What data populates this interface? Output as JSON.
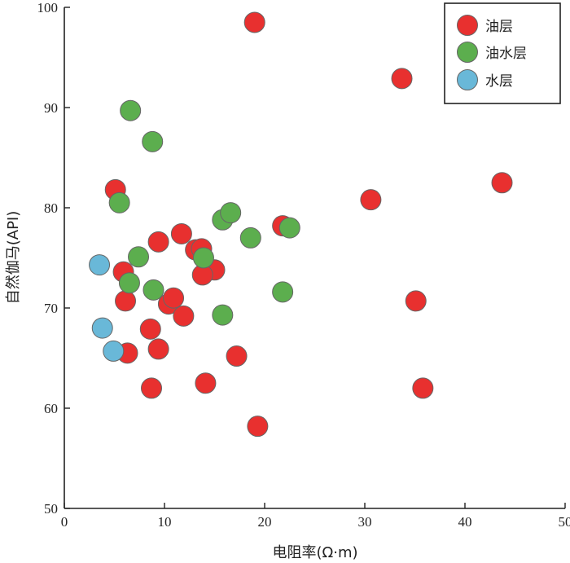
{
  "chart_data": {
    "type": "scatter",
    "xlabel": "电阻率(Ω·m)",
    "ylabel": "自然伽马(API)",
    "xlim": [
      0,
      50
    ],
    "ylim": [
      50,
      100
    ],
    "xticks": [
      "0",
      "10",
      "20",
      "30",
      "40",
      "50"
    ],
    "yticks": [
      "50",
      "60",
      "70",
      "80",
      "90",
      "100"
    ],
    "legend_position": "top-right",
    "series": [
      {
        "name": "油层",
        "color": "#e8302f",
        "points": [
          [
            19.0,
            98.5
          ],
          [
            33.7,
            92.9
          ],
          [
            43.7,
            82.5
          ],
          [
            30.6,
            80.8
          ],
          [
            21.8,
            78.2
          ],
          [
            5.1,
            81.8
          ],
          [
            11.7,
            77.4
          ],
          [
            9.4,
            76.6
          ],
          [
            13.1,
            75.8
          ],
          [
            13.7,
            75.9
          ],
          [
            15.0,
            73.8
          ],
          [
            13.8,
            73.3
          ],
          [
            5.9,
            73.6
          ],
          [
            6.1,
            70.7
          ],
          [
            10.4,
            70.4
          ],
          [
            10.9,
            71.0
          ],
          [
            11.9,
            69.2
          ],
          [
            35.1,
            70.7
          ],
          [
            8.6,
            67.9
          ],
          [
            9.4,
            65.9
          ],
          [
            6.3,
            65.5
          ],
          [
            17.2,
            65.2
          ],
          [
            14.1,
            62.5
          ],
          [
            8.7,
            62.0
          ],
          [
            35.8,
            62.0
          ],
          [
            19.3,
            58.2
          ]
        ]
      },
      {
        "name": "油水层",
        "color": "#5cae4e",
        "points": [
          [
            6.6,
            89.7
          ],
          [
            8.8,
            86.6
          ],
          [
            5.5,
            80.5
          ],
          [
            15.8,
            78.8
          ],
          [
            16.6,
            79.5
          ],
          [
            18.6,
            77.0
          ],
          [
            22.5,
            78.0
          ],
          [
            7.4,
            75.1
          ],
          [
            13.9,
            75.0
          ],
          [
            6.5,
            72.5
          ],
          [
            8.9,
            71.8
          ],
          [
            21.8,
            71.6
          ],
          [
            15.8,
            69.3
          ]
        ]
      },
      {
        "name": "水层",
        "color": "#69b8d8",
        "points": [
          [
            3.5,
            74.3
          ],
          [
            3.8,
            68.0
          ],
          [
            4.9,
            65.7
          ]
        ]
      }
    ]
  }
}
